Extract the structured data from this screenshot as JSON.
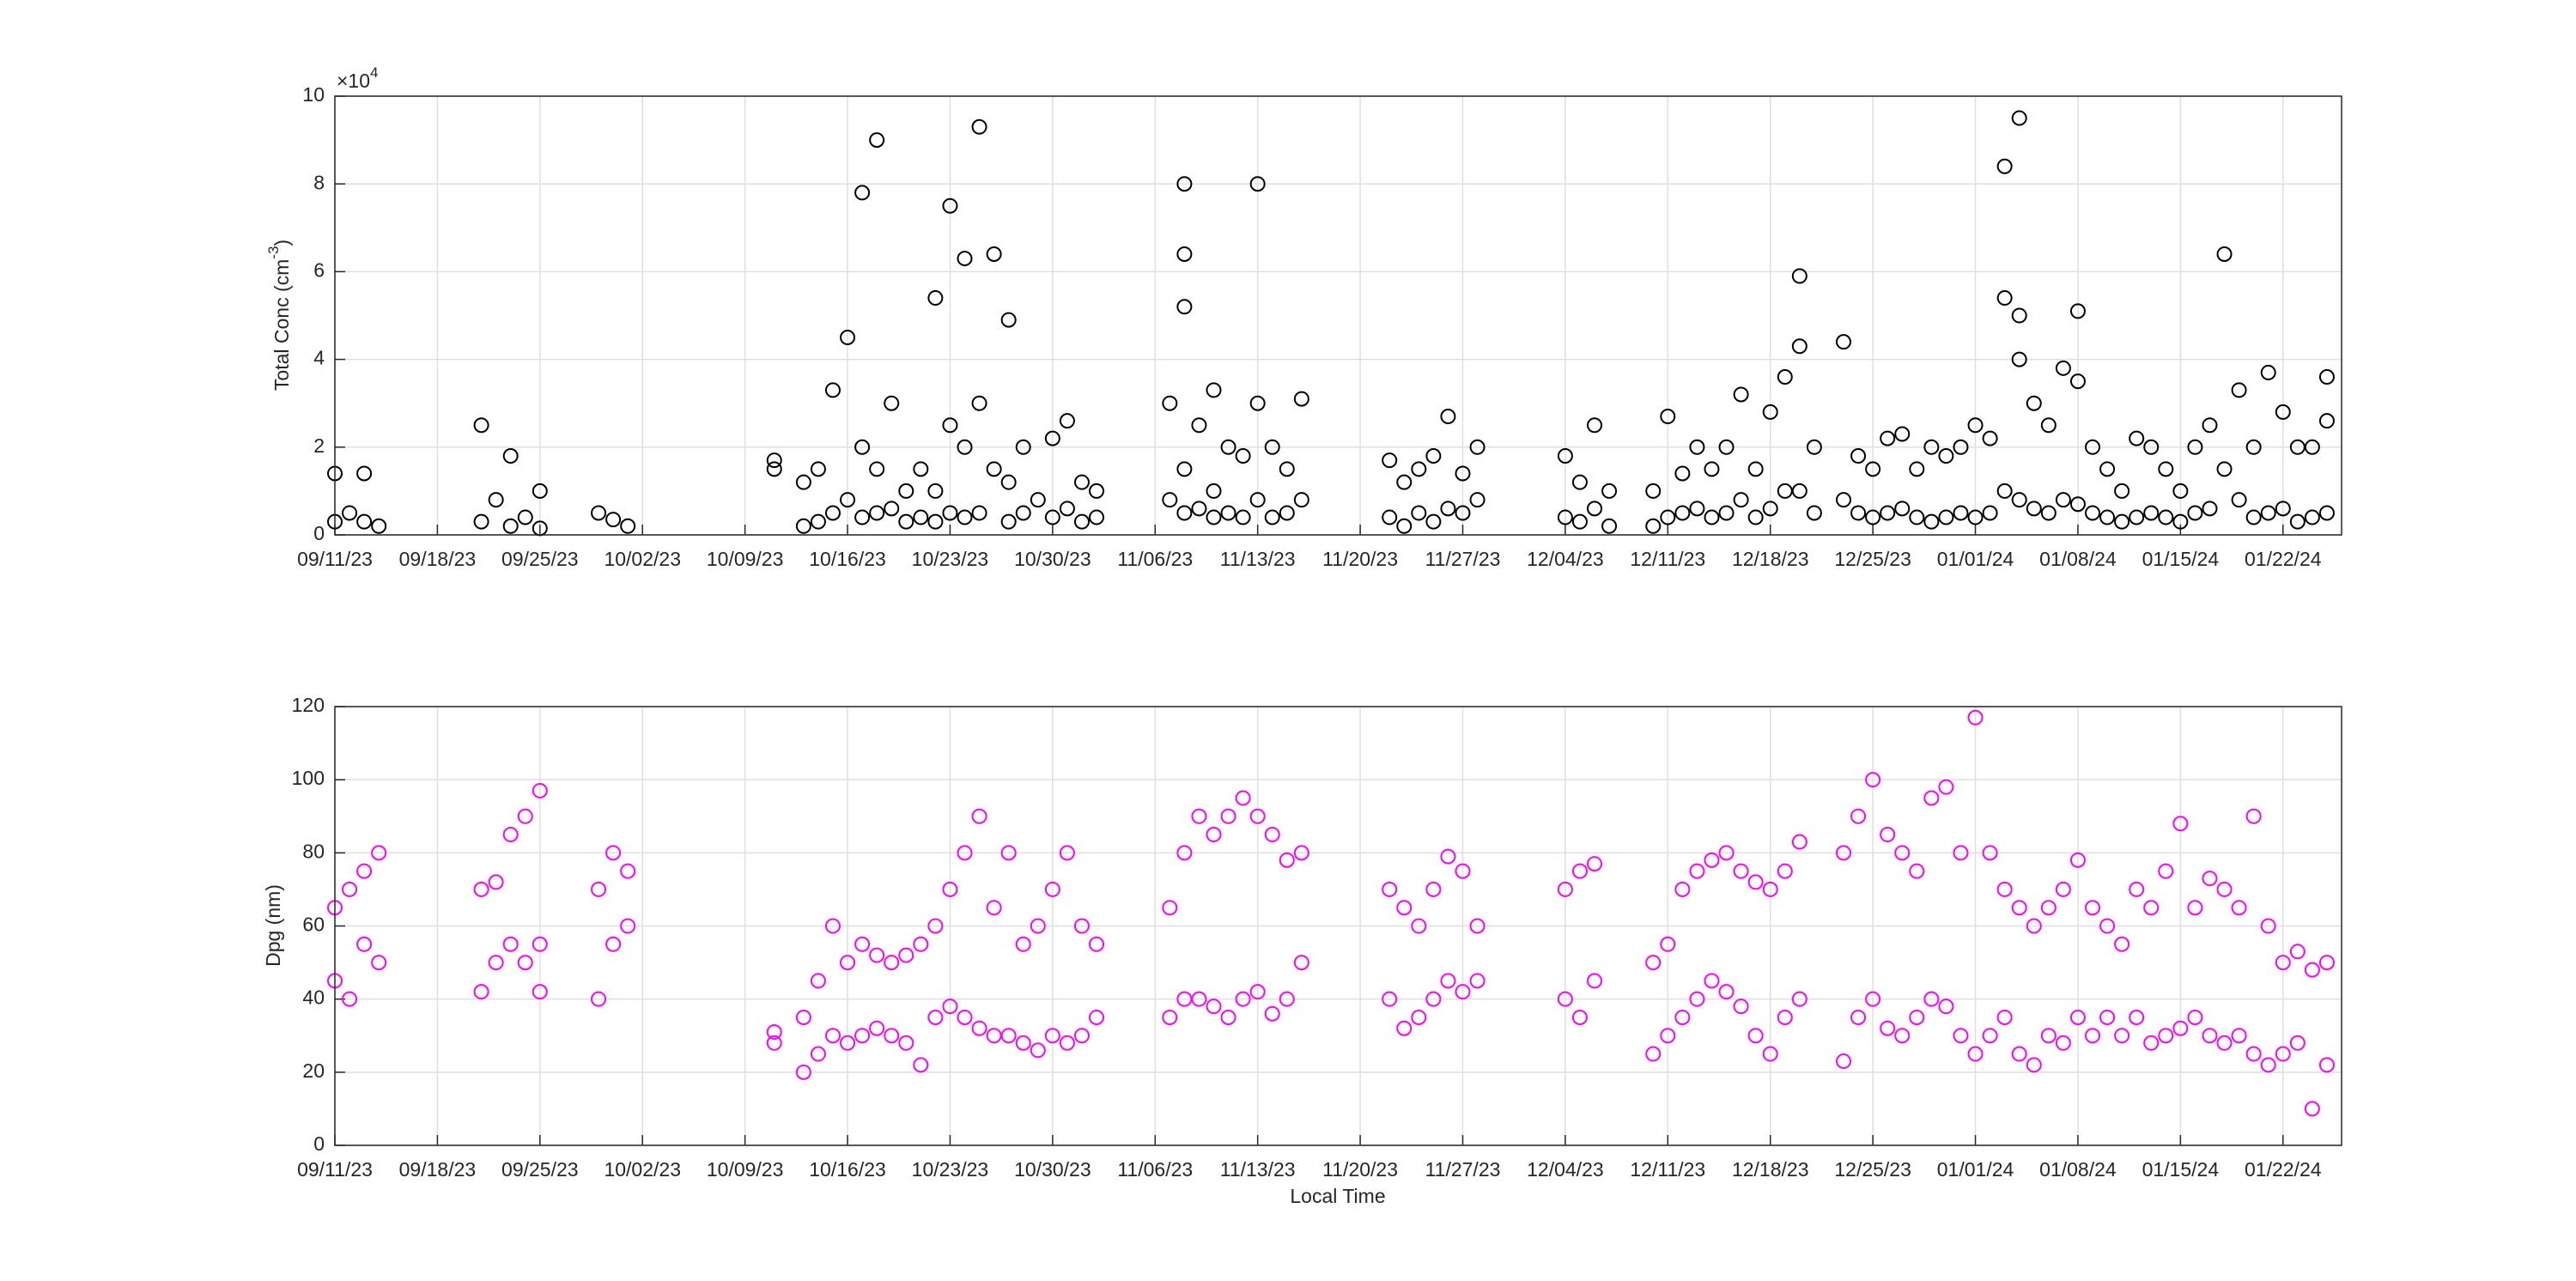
{
  "chart_data": [
    {
      "type": "scatter",
      "color": "#000000",
      "grid": true,
      "ylabel": "Total Conc (cm",
      "ylabel_sup": "-3",
      "ylabel_end": ")",
      "y_exponent_base": "×10",
      "y_exponent": "4",
      "xlim": [
        "2023-09-11",
        "2024-01-26"
      ],
      "xticks": [
        {
          "value": "2023-09-11",
          "label": "09/11/23"
        },
        {
          "value": "2023-09-18",
          "label": "09/18/23"
        },
        {
          "value": "2023-09-25",
          "label": "09/25/23"
        },
        {
          "value": "2023-10-02",
          "label": "10/02/23"
        },
        {
          "value": "2023-10-09",
          "label": "10/09/23"
        },
        {
          "value": "2023-10-16",
          "label": "10/16/23"
        },
        {
          "value": "2023-10-23",
          "label": "10/23/23"
        },
        {
          "value": "2023-10-30",
          "label": "10/30/23"
        },
        {
          "value": "2023-11-06",
          "label": "11/06/23"
        },
        {
          "value": "2023-11-13",
          "label": "11/13/23"
        },
        {
          "value": "2023-11-20",
          "label": "11/20/23"
        },
        {
          "value": "2023-11-27",
          "label": "11/27/23"
        },
        {
          "value": "2023-12-04",
          "label": "12/04/23"
        },
        {
          "value": "2023-12-11",
          "label": "12/11/23"
        },
        {
          "value": "2023-12-18",
          "label": "12/18/23"
        },
        {
          "value": "2023-12-25",
          "label": "12/25/23"
        },
        {
          "value": "2024-01-01",
          "label": "01/01/24"
        },
        {
          "value": "2024-01-08",
          "label": "01/08/24"
        },
        {
          "value": "2024-01-15",
          "label": "01/15/24"
        },
        {
          "value": "2024-01-22",
          "label": "01/22/24"
        }
      ],
      "ylim": [
        0,
        100000
      ],
      "yticks": [
        0,
        {
          "value": 20000,
          "label": "2"
        },
        {
          "value": 40000,
          "label": "4"
        },
        {
          "value": 60000,
          "label": "6"
        },
        {
          "value": 80000,
          "label": "8"
        },
        {
          "value": 100000,
          "label": "10"
        }
      ],
      "x": [
        "2023-09-11",
        "2023-09-11",
        "2023-09-12",
        "2023-09-13",
        "2023-09-13",
        "2023-09-14",
        "2023-09-21",
        "2023-09-21",
        "2023-09-22",
        "2023-09-23",
        "2023-09-23",
        "2023-09-24",
        "2023-09-25",
        "2023-09-25",
        "2023-09-29",
        "2023-09-30",
        "2023-10-01",
        "2023-10-11",
        "2023-10-11",
        "2023-10-13",
        "2023-10-13",
        "2023-10-14",
        "2023-10-14",
        "2023-10-15",
        "2023-10-15",
        "2023-10-16",
        "2023-10-16",
        "2023-10-17",
        "2023-10-17",
        "2023-10-17",
        "2023-10-18",
        "2023-10-18",
        "2023-10-18",
        "2023-10-19",
        "2023-10-19",
        "2023-10-20",
        "2023-10-20",
        "2023-10-21",
        "2023-10-21",
        "2023-10-22",
        "2023-10-22",
        "2023-10-22",
        "2023-10-23",
        "2023-10-23",
        "2023-10-23",
        "2023-10-24",
        "2023-10-24",
        "2023-10-24",
        "2023-10-25",
        "2023-10-25",
        "2023-10-25",
        "2023-10-26",
        "2023-10-26",
        "2023-10-27",
        "2023-10-27",
        "2023-10-27",
        "2023-10-28",
        "2023-10-28",
        "2023-10-29",
        "2023-10-30",
        "2023-10-30",
        "2023-10-31",
        "2023-10-31",
        "2023-11-01",
        "2023-11-01",
        "2023-11-02",
        "2023-11-02",
        "2023-11-07",
        "2023-11-07",
        "2023-11-08",
        "2023-11-08",
        "2023-11-08",
        "2023-11-08",
        "2023-11-08",
        "2023-11-09",
        "2023-11-09",
        "2023-11-10",
        "2023-11-10",
        "2023-11-10",
        "2023-11-11",
        "2023-11-11",
        "2023-11-12",
        "2023-11-12",
        "2023-11-13",
        "2023-11-13",
        "2023-11-13",
        "2023-11-14",
        "2023-11-14",
        "2023-11-15",
        "2023-11-15",
        "2023-11-16",
        "2023-11-16",
        "2023-11-22",
        "2023-11-22",
        "2023-11-23",
        "2023-11-23",
        "2023-11-24",
        "2023-11-24",
        "2023-11-25",
        "2023-11-25",
        "2023-11-26",
        "2023-11-26",
        "2023-11-27",
        "2023-11-27",
        "2023-11-28",
        "2023-11-28",
        "2023-12-04",
        "2023-12-04",
        "2023-12-05",
        "2023-12-05",
        "2023-12-06",
        "2023-12-06",
        "2023-12-07",
        "2023-12-07",
        "2023-12-10",
        "2023-12-10",
        "2023-12-11",
        "2023-12-11",
        "2023-12-12",
        "2023-12-12",
        "2023-12-13",
        "2023-12-13",
        "2023-12-14",
        "2023-12-14",
        "2023-12-15",
        "2023-12-15",
        "2023-12-16",
        "2023-12-16",
        "2023-12-17",
        "2023-12-17",
        "2023-12-18",
        "2023-12-18",
        "2023-12-19",
        "2023-12-19",
        "2023-12-20",
        "2023-12-20",
        "2023-12-20",
        "2023-12-21",
        "2023-12-21",
        "2023-12-23",
        "2023-12-23",
        "2023-12-24",
        "2023-12-24",
        "2023-12-25",
        "2023-12-25",
        "2023-12-26",
        "2023-12-26",
        "2023-12-27",
        "2023-12-27",
        "2023-12-28",
        "2023-12-28",
        "2023-12-29",
        "2023-12-29",
        "2023-12-30",
        "2023-12-30",
        "2023-12-31",
        "2023-12-31",
        "2024-01-01",
        "2024-01-01",
        "2024-01-02",
        "2024-01-02",
        "2024-01-03",
        "2024-01-03",
        "2024-01-03",
        "2024-01-04",
        "2024-01-04",
        "2024-01-04",
        "2024-01-04",
        "2024-01-05",
        "2024-01-05",
        "2024-01-06",
        "2024-01-06",
        "2024-01-07",
        "2024-01-07",
        "2024-01-08",
        "2024-01-08",
        "2024-01-08",
        "2024-01-09",
        "2024-01-09",
        "2024-01-10",
        "2024-01-10",
        "2024-01-11",
        "2024-01-11",
        "2024-01-12",
        "2024-01-12",
        "2024-01-13",
        "2024-01-13",
        "2024-01-14",
        "2024-01-14",
        "2024-01-15",
        "2024-01-15",
        "2024-01-16",
        "2024-01-16",
        "2024-01-17",
        "2024-01-17",
        "2024-01-18",
        "2024-01-18",
        "2024-01-19",
        "2024-01-19",
        "2024-01-20",
        "2024-01-20",
        "2024-01-21",
        "2024-01-21",
        "2024-01-22",
        "2024-01-22",
        "2024-01-23",
        "2024-01-23",
        "2024-01-24",
        "2024-01-24",
        "2024-01-25",
        "2024-01-25",
        "2024-01-25"
      ],
      "values": [
        14000,
        3000,
        5000,
        14000,
        3000,
        2000,
        25000,
        3000,
        8000,
        18000,
        2000,
        4000,
        10000,
        1500,
        5000,
        3500,
        2000,
        17000,
        15000,
        12000,
        2000,
        15000,
        3000,
        33000,
        5000,
        45000,
        8000,
        78000,
        20000,
        4000,
        90000,
        15000,
        5000,
        30000,
        6000,
        10000,
        3000,
        15000,
        4000,
        54000,
        10000,
        3000,
        75000,
        25000,
        5000,
        63000,
        20000,
        4000,
        93000,
        30000,
        5000,
        64000,
        15000,
        49000,
        12000,
        3000,
        20000,
        5000,
        8000,
        22000,
        4000,
        26000,
        6000,
        12000,
        3000,
        10000,
        4000,
        30000,
        8000,
        80000,
        64000,
        52000,
        15000,
        5000,
        25000,
        6000,
        33000,
        10000,
        4000,
        20000,
        5000,
        18000,
        4000,
        80000,
        30000,
        8000,
        20000,
        4000,
        15000,
        5000,
        31000,
        8000,
        17000,
        4000,
        12000,
        2000,
        15000,
        5000,
        18000,
        3000,
        27000,
        6000,
        14000,
        5000,
        20000,
        8000,
        18000,
        4000,
        12000,
        3000,
        25000,
        6000,
        10000,
        2000,
        10000,
        2000,
        27000,
        4000,
        14000,
        5000,
        20000,
        6000,
        15000,
        4000,
        20000,
        5000,
        32000,
        8000,
        15000,
        4000,
        28000,
        6000,
        36000,
        10000,
        59000,
        43000,
        10000,
        20000,
        5000,
        44000,
        8000,
        18000,
        5000,
        15000,
        4000,
        22000,
        5000,
        23000,
        6000,
        15000,
        4000,
        20000,
        3000,
        18000,
        4000,
        20000,
        5000,
        25000,
        4000,
        22000,
        5000,
        54000,
        84000,
        10000,
        50000,
        95000,
        40000,
        8000,
        30000,
        6000,
        25000,
        5000,
        38000,
        8000,
        51000,
        35000,
        7000,
        20000,
        5000,
        15000,
        4000,
        10000,
        3000,
        22000,
        4000,
        20000,
        5000,
        15000,
        4000,
        10000,
        3000,
        20000,
        5000,
        25000,
        6000,
        64000,
        15000,
        33000,
        8000,
        20000,
        4000,
        37000,
        5000,
        28000,
        6000,
        20000,
        3000,
        20000,
        4000,
        36000,
        26000,
        5000
      ]
    },
    {
      "type": "scatter",
      "color": "#ff00ff",
      "grid": true,
      "ylabel": "Dpg (nm)",
      "xlabel": "Local Time",
      "xlim": [
        "2023-09-11",
        "2024-01-26"
      ],
      "xticks": [
        {
          "value": "2023-09-11",
          "label": "09/11/23"
        },
        {
          "value": "2023-09-18",
          "label": "09/18/23"
        },
        {
          "value": "2023-09-25",
          "label": "09/25/23"
        },
        {
          "value": "2023-10-02",
          "label": "10/02/23"
        },
        {
          "value": "2023-10-09",
          "label": "10/09/23"
        },
        {
          "value": "2023-10-16",
          "label": "10/16/23"
        },
        {
          "value": "2023-10-23",
          "label": "10/23/23"
        },
        {
          "value": "2023-10-30",
          "label": "10/30/23"
        },
        {
          "value": "2023-11-06",
          "label": "11/06/23"
        },
        {
          "value": "2023-11-13",
          "label": "11/13/23"
        },
        {
          "value": "2023-11-20",
          "label": "11/20/23"
        },
        {
          "value": "2023-11-27",
          "label": "11/27/23"
        },
        {
          "value": "2023-12-04",
          "label": "12/04/23"
        },
        {
          "value": "2023-12-11",
          "label": "12/11/23"
        },
        {
          "value": "2023-12-18",
          "label": "12/18/23"
        },
        {
          "value": "2023-12-25",
          "label": "12/25/23"
        },
        {
          "value": "2024-01-01",
          "label": "01/01/24"
        },
        {
          "value": "2024-01-08",
          "label": "01/08/24"
        },
        {
          "value": "2024-01-15",
          "label": "01/15/24"
        },
        {
          "value": "2024-01-22",
          "label": "01/22/24"
        }
      ],
      "ylim": [
        0,
        120
      ],
      "yticks": [
        0,
        20,
        40,
        60,
        80,
        100,
        120
      ],
      "x": [
        "2023-09-11",
        "2023-09-11",
        "2023-09-12",
        "2023-09-12",
        "2023-09-13",
        "2023-09-13",
        "2023-09-14",
        "2023-09-14",
        "2023-09-21",
        "2023-09-21",
        "2023-09-22",
        "2023-09-22",
        "2023-09-23",
        "2023-09-23",
        "2023-09-24",
        "2023-09-24",
        "2023-09-25",
        "2023-09-25",
        "2023-09-25",
        "2023-09-29",
        "2023-09-29",
        "2023-09-30",
        "2023-09-30",
        "2023-10-01",
        "2023-10-01",
        "2023-10-11",
        "2023-10-11",
        "2023-10-13",
        "2023-10-13",
        "2023-10-14",
        "2023-10-14",
        "2023-10-15",
        "2023-10-15",
        "2023-10-16",
        "2023-10-16",
        "2023-10-17",
        "2023-10-17",
        "2023-10-18",
        "2023-10-18",
        "2023-10-19",
        "2023-10-19",
        "2023-10-20",
        "2023-10-20",
        "2023-10-21",
        "2023-10-21",
        "2023-10-22",
        "2023-10-22",
        "2023-10-23",
        "2023-10-23",
        "2023-10-24",
        "2023-10-24",
        "2023-10-25",
        "2023-10-25",
        "2023-10-26",
        "2023-10-26",
        "2023-10-27",
        "2023-10-27",
        "2023-10-28",
        "2023-10-28",
        "2023-10-29",
        "2023-10-29",
        "2023-10-30",
        "2023-10-30",
        "2023-10-31",
        "2023-10-31",
        "2023-11-01",
        "2023-11-01",
        "2023-11-02",
        "2023-11-02",
        "2023-11-07",
        "2023-11-07",
        "2023-11-08",
        "2023-11-08",
        "2023-11-09",
        "2023-11-09",
        "2023-11-10",
        "2023-11-10",
        "2023-11-11",
        "2023-11-11",
        "2023-11-12",
        "2023-11-12",
        "2023-11-13",
        "2023-11-13",
        "2023-11-14",
        "2023-11-14",
        "2023-11-15",
        "2023-11-15",
        "2023-11-16",
        "2023-11-16",
        "2023-11-22",
        "2023-11-22",
        "2023-11-23",
        "2023-11-23",
        "2023-11-24",
        "2023-11-24",
        "2023-11-25",
        "2023-11-25",
        "2023-11-26",
        "2023-11-26",
        "2023-11-27",
        "2023-11-27",
        "2023-11-28",
        "2023-11-28",
        "2023-12-04",
        "2023-12-04",
        "2023-12-05",
        "2023-12-05",
        "2023-12-06",
        "2023-12-06",
        "2023-12-10",
        "2023-12-10",
        "2023-12-11",
        "2023-12-11",
        "2023-12-12",
        "2023-12-12",
        "2023-12-13",
        "2023-12-13",
        "2023-12-14",
        "2023-12-14",
        "2023-12-15",
        "2023-12-15",
        "2023-12-16",
        "2023-12-16",
        "2023-12-17",
        "2023-12-17",
        "2023-12-18",
        "2023-12-18",
        "2023-12-19",
        "2023-12-19",
        "2023-12-20",
        "2023-12-20",
        "2023-12-23",
        "2023-12-23",
        "2023-12-24",
        "2023-12-24",
        "2023-12-25",
        "2023-12-25",
        "2023-12-26",
        "2023-12-26",
        "2023-12-27",
        "2023-12-27",
        "2023-12-28",
        "2023-12-28",
        "2023-12-29",
        "2023-12-29",
        "2023-12-30",
        "2023-12-30",
        "2023-12-31",
        "2023-12-31",
        "2024-01-01",
        "2024-01-01",
        "2024-01-02",
        "2024-01-02",
        "2024-01-03",
        "2024-01-03",
        "2024-01-04",
        "2024-01-04",
        "2024-01-05",
        "2024-01-05",
        "2024-01-06",
        "2024-01-06",
        "2024-01-07",
        "2024-01-07",
        "2024-01-08",
        "2024-01-08",
        "2024-01-09",
        "2024-01-09",
        "2024-01-10",
        "2024-01-10",
        "2024-01-11",
        "2024-01-11",
        "2024-01-12",
        "2024-01-12",
        "2024-01-13",
        "2024-01-13",
        "2024-01-14",
        "2024-01-14",
        "2024-01-15",
        "2024-01-15",
        "2024-01-16",
        "2024-01-16",
        "2024-01-17",
        "2024-01-17",
        "2024-01-18",
        "2024-01-18",
        "2024-01-19",
        "2024-01-19",
        "2024-01-20",
        "2024-01-20",
        "2024-01-21",
        "2024-01-21",
        "2024-01-22",
        "2024-01-22",
        "2024-01-23",
        "2024-01-23",
        "2024-01-24",
        "2024-01-24",
        "2024-01-25",
        "2024-01-25"
      ],
      "values": [
        65,
        45,
        70,
        40,
        75,
        55,
        80,
        50,
        70,
        42,
        72,
        50,
        85,
        55,
        90,
        50,
        97,
        55,
        42,
        70,
        40,
        80,
        55,
        75,
        60,
        31,
        28,
        35,
        20,
        45,
        25,
        60,
        30,
        50,
        28,
        55,
        30,
        52,
        32,
        50,
        30,
        52,
        28,
        55,
        22,
        60,
        35,
        70,
        38,
        80,
        35,
        90,
        32,
        65,
        30,
        80,
        30,
        55,
        28,
        60,
        26,
        70,
        30,
        80,
        28,
        60,
        30,
        55,
        35,
        65,
        35,
        80,
        40,
        90,
        40,
        85,
        38,
        90,
        35,
        95,
        40,
        90,
        42,
        85,
        36,
        78,
        40,
        80,
        50,
        70,
        40,
        65,
        32,
        60,
        35,
        70,
        40,
        79,
        45,
        75,
        42,
        60,
        45,
        70,
        40,
        75,
        35,
        77,
        45,
        50,
        25,
        55,
        30,
        70,
        35,
        75,
        40,
        78,
        45,
        80,
        42,
        75,
        38,
        72,
        30,
        70,
        25,
        75,
        35,
        83,
        40,
        80,
        23,
        90,
        35,
        100,
        40,
        85,
        32,
        80,
        30,
        75,
        35,
        95,
        40,
        98,
        38,
        80,
        30,
        117,
        25,
        80,
        30,
        70,
        35,
        65,
        25,
        60,
        22,
        65,
        30,
        70,
        28,
        78,
        35,
        65,
        30,
        60,
        35,
        55,
        30,
        70,
        35,
        65,
        28,
        75,
        30,
        88,
        32,
        65,
        35,
        73,
        30,
        70,
        28,
        65,
        30,
        90,
        25,
        60,
        22,
        50,
        25,
        53,
        28,
        48,
        10,
        50,
        22
      ]
    }
  ]
}
